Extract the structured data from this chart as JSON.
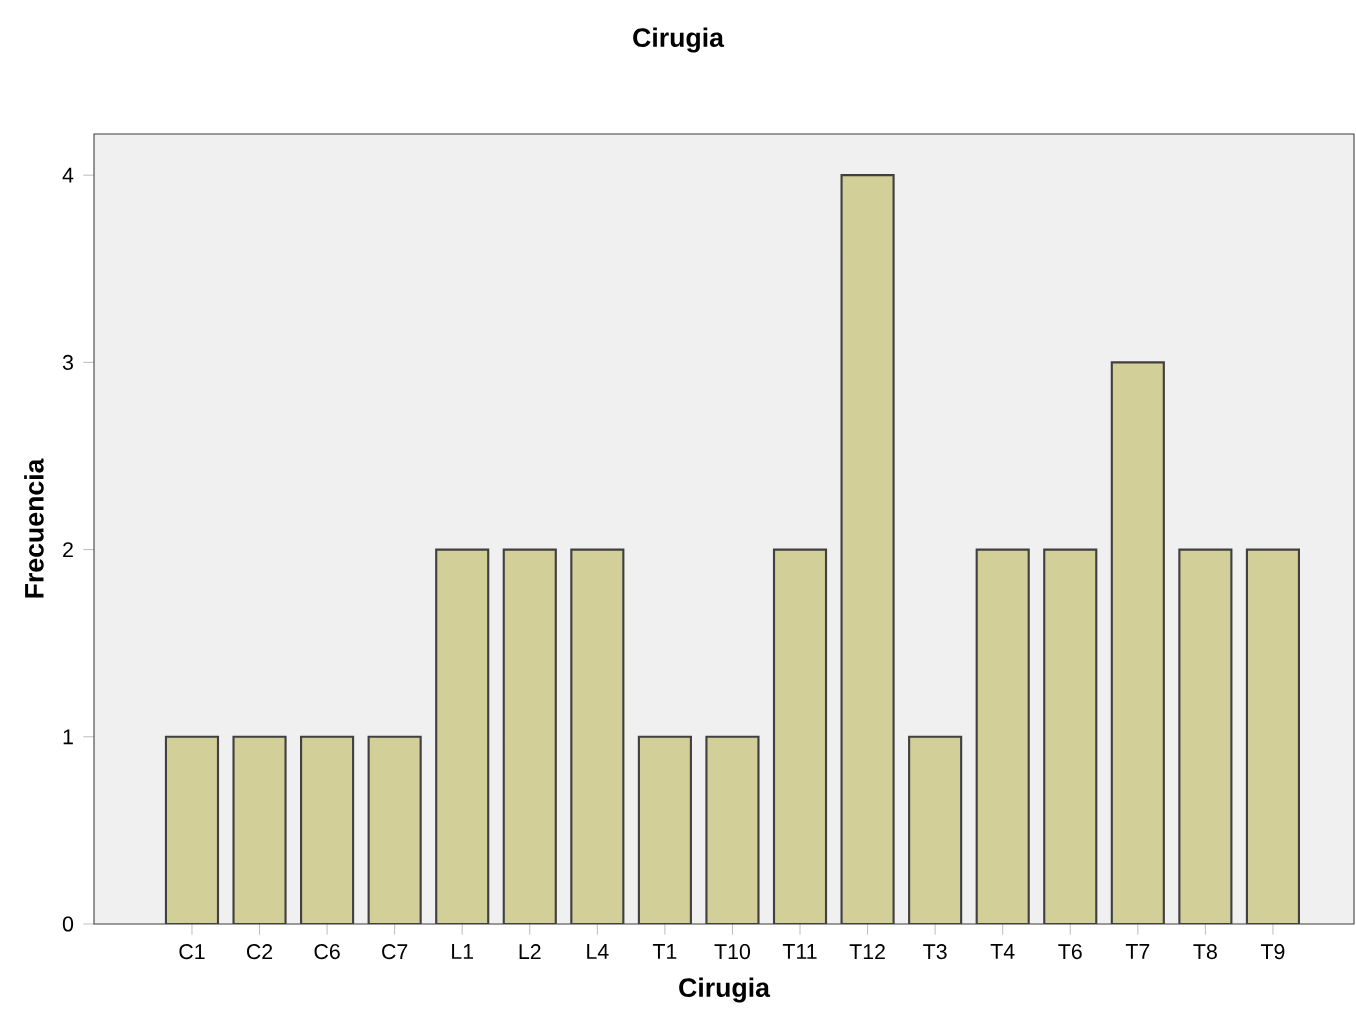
{
  "chart_data": {
    "type": "bar",
    "title": "Cirugia",
    "xlabel": "Cirugia",
    "ylabel": "Frecuencia",
    "categories": [
      "C1",
      "C2",
      "C6",
      "C7",
      "L1",
      "L2",
      "L4",
      "T1",
      "T10",
      "T11",
      "T12",
      "T3",
      "T4",
      "T6",
      "T7",
      "T8",
      "T9"
    ],
    "values": [
      1,
      1,
      1,
      1,
      2,
      2,
      2,
      1,
      1,
      2,
      4,
      1,
      2,
      2,
      3,
      2,
      2
    ],
    "color": "#d3cf98",
    "ylim": [
      0,
      4.22
    ],
    "yticks": [
      0,
      1,
      2,
      3,
      4
    ]
  }
}
